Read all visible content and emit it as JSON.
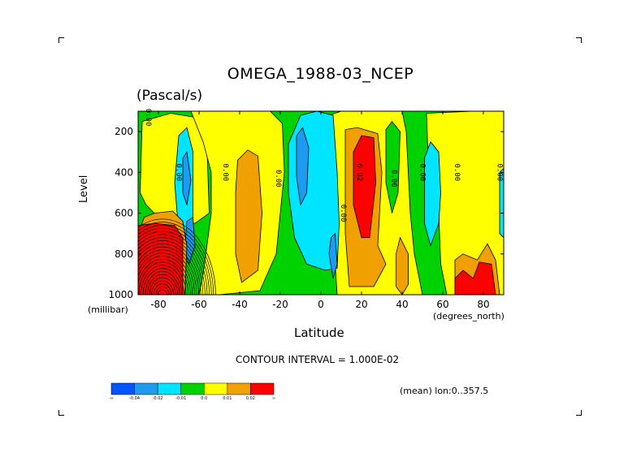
{
  "chart_data": {
    "type": "heatmap",
    "title": "OMEGA_1988-03_NCEP",
    "units": "(Pascal/s)",
    "ylabel": "Level",
    "y_units": "(millibar)",
    "xlabel": "Latitude",
    "x_units": "(degrees_north)",
    "xlim": [
      -90,
      90
    ],
    "ylim": [
      1000,
      100
    ],
    "x_ticks": [
      "-80",
      "-60",
      "-40",
      "-20",
      "0",
      "20",
      "40",
      "60",
      "80"
    ],
    "x_tick_values": [
      -80,
      -60,
      -40,
      -20,
      0,
      20,
      40,
      60,
      80
    ],
    "y_ticks": [
      "200",
      "400",
      "600",
      "800",
      "1000"
    ],
    "y_tick_values": [
      200,
      400,
      600,
      800,
      1000
    ],
    "contour_interval_text": "CONTOUR INTERVAL = 1.000E-02",
    "subtitle_right": "(mean) lon:0..357.5",
    "contour_labels": [
      {
        "text": "0.00",
        "lat": -71,
        "lev": 400
      },
      {
        "text": "0.00",
        "lat": -48,
        "lev": 400
      },
      {
        "text": "0.00",
        "lat": -22,
        "lev": 430
      },
      {
        "text": "0.00",
        "lat": 10,
        "lev": 600
      },
      {
        "text": "0.02",
        "lat": 18,
        "lev": 400
      },
      {
        "text": "0.00",
        "lat": 35,
        "lev": 430
      },
      {
        "text": "0.00",
        "lat": 49,
        "lev": 400
      },
      {
        "text": "0.00",
        "lat": 66,
        "lev": 400
      },
      {
        "text": "0.00",
        "lat": 87,
        "lev": 400
      },
      {
        "text": "0.00",
        "lat": -86,
        "lev": 130
      }
    ],
    "colorbar": {
      "colors": [
        "#0055ff",
        "#1e9bf0",
        "#00e5ff",
        "#00d200",
        "#ffff00",
        "#f0a000",
        "#ff0000"
      ],
      "labels": [
        "-∞",
        "-0.04",
        "-0.02",
        "-0.01",
        "0.0",
        "0.01",
        "0.02",
        "∞"
      ]
    },
    "regions": [
      {
        "level": "green",
        "color": "#00d200",
        "polygon": [
          [
            -90,
            100
          ],
          [
            90,
            100
          ],
          [
            90,
            1000
          ],
          [
            -90,
            1000
          ]
        ]
      },
      {
        "level": "yellow",
        "color": "#ffff00",
        "polygon": [
          [
            -88,
            150
          ],
          [
            -74,
            110
          ],
          [
            -62,
            130
          ],
          [
            -56,
            300
          ],
          [
            -55,
            600
          ],
          [
            -62,
            650
          ],
          [
            -70,
            640
          ],
          [
            -80,
            620
          ],
          [
            -86,
            560
          ],
          [
            -89,
            500
          ]
        ]
      },
      {
        "level": "yellow",
        "color": "#ffff00",
        "polygon": [
          [
            -64,
            100
          ],
          [
            -25,
            100
          ],
          [
            -19,
            160
          ],
          [
            -18,
            400
          ],
          [
            -22,
            800
          ],
          [
            -30,
            980
          ],
          [
            -50,
            1000
          ],
          [
            -60,
            1000
          ],
          [
            -58,
            900
          ],
          [
            -54,
            600
          ],
          [
            -54,
            400
          ],
          [
            -58,
            250
          ]
        ]
      },
      {
        "level": "yellow",
        "color": "#ffff00",
        "polygon": [
          [
            4,
            120
          ],
          [
            10,
            100
          ],
          [
            40,
            100
          ],
          [
            42,
            200
          ],
          [
            44,
            600
          ],
          [
            46,
            800
          ],
          [
            50,
            1000
          ],
          [
            8,
            1000
          ],
          [
            6,
            700
          ],
          [
            7,
            400
          ]
        ]
      },
      {
        "level": "yellow",
        "color": "#ffff00",
        "polygon": [
          [
            52,
            110
          ],
          [
            75,
            100
          ],
          [
            90,
            100
          ],
          [
            90,
            1000
          ],
          [
            62,
            1000
          ],
          [
            59,
            850
          ],
          [
            58,
            600
          ],
          [
            53,
            400
          ]
        ]
      },
      {
        "level": "green",
        "color": "#00d200",
        "polygon": [
          [
            32,
            190
          ],
          [
            35,
            150
          ],
          [
            39,
            200
          ],
          [
            38,
            500
          ],
          [
            35,
            600
          ],
          [
            32,
            450
          ]
        ]
      },
      {
        "level": "cyan",
        "color": "#00e5ff",
        "polygon": [
          [
            -70,
            220
          ],
          [
            -66,
            180
          ],
          [
            -63,
            300
          ],
          [
            -63,
            650
          ],
          [
            -66,
            760
          ],
          [
            -70,
            700
          ],
          [
            -72,
            450
          ]
        ]
      },
      {
        "level": "blue",
        "color": "#1e9bf0",
        "polygon": [
          [
            -68,
            330
          ],
          [
            -66,
            300
          ],
          [
            -64,
            440
          ],
          [
            -66,
            560
          ],
          [
            -68,
            500
          ]
        ]
      },
      {
        "level": "blue",
        "color": "#1e9bf0",
        "polygon": [
          [
            -66,
            640
          ],
          [
            -63,
            620
          ],
          [
            -62,
            760
          ],
          [
            -65,
            850
          ],
          [
            -67,
            780
          ]
        ]
      },
      {
        "level": "cyan",
        "color": "#00e5ff",
        "polygon": [
          [
            -16,
            260
          ],
          [
            -10,
            120
          ],
          [
            -2,
            100
          ],
          [
            6,
            120
          ],
          [
            8,
            400
          ],
          [
            9,
            650
          ],
          [
            8,
            870
          ],
          [
            2,
            880
          ],
          [
            -7,
            850
          ],
          [
            -13,
            720
          ],
          [
            -16,
            500
          ]
        ]
      },
      {
        "level": "blue",
        "color": "#1e9bf0",
        "polygon": [
          [
            -12,
            220
          ],
          [
            -9,
            180
          ],
          [
            -6,
            280
          ],
          [
            -7,
            500
          ],
          [
            -10,
            560
          ],
          [
            -12,
            420
          ]
        ]
      },
      {
        "level": "blue",
        "color": "#1e9bf0",
        "polygon": [
          [
            5,
            720
          ],
          [
            7,
            700
          ],
          [
            8,
            850
          ],
          [
            6,
            920
          ],
          [
            4,
            800
          ]
        ]
      },
      {
        "level": "cyan",
        "color": "#00e5ff",
        "polygon": [
          [
            51,
            330
          ],
          [
            54,
            250
          ],
          [
            58,
            300
          ],
          [
            59,
            500
          ],
          [
            58,
            650
          ],
          [
            54,
            760
          ],
          [
            51,
            650
          ]
        ]
      },
      {
        "level": "cyan",
        "color": "#00e5ff",
        "polygon": [
          [
            88,
            400
          ],
          [
            90,
            380
          ],
          [
            90,
            720
          ],
          [
            88,
            700
          ]
        ]
      },
      {
        "level": "orange",
        "color": "#f0a000",
        "polygon": [
          [
            -87,
            620
          ],
          [
            -82,
            600
          ],
          [
            -73,
            590
          ],
          [
            -68,
            640
          ],
          [
            -66,
            760
          ],
          [
            -67,
            1000
          ],
          [
            -89,
            1000
          ],
          [
            -90,
            700
          ]
        ]
      },
      {
        "level": "orange",
        "color": "#f0a000",
        "polygon": [
          [
            -41,
            340
          ],
          [
            -36,
            290
          ],
          [
            -31,
            320
          ],
          [
            -29,
            600
          ],
          [
            -31,
            880
          ],
          [
            -39,
            940
          ],
          [
            -42,
            800
          ],
          [
            -42,
            500
          ]
        ]
      },
      {
        "level": "orange",
        "color": "#f0a000",
        "polygon": [
          [
            12,
            190
          ],
          [
            18,
            180
          ],
          [
            28,
            210
          ],
          [
            30,
            400
          ],
          [
            28,
            760
          ],
          [
            32,
            850
          ],
          [
            26,
            960
          ],
          [
            14,
            960
          ],
          [
            12,
            700
          ],
          [
            12,
            400
          ]
        ]
      },
      {
        "level": "orange",
        "color": "#f0a000",
        "polygon": [
          [
            37,
            800
          ],
          [
            39,
            720
          ],
          [
            43,
            800
          ],
          [
            43,
            950
          ],
          [
            40,
            1000
          ],
          [
            37,
            960
          ]
        ]
      },
      {
        "level": "orange",
        "color": "#f0a000",
        "polygon": [
          [
            66,
            830
          ],
          [
            70,
            800
          ],
          [
            77,
            830
          ],
          [
            82,
            750
          ],
          [
            86,
            830
          ],
          [
            88,
            1000
          ],
          [
            66,
            1000
          ]
        ]
      },
      {
        "level": "red",
        "color": "#ff0000",
        "polygon": [
          [
            -90,
            660
          ],
          [
            -82,
            650
          ],
          [
            -72,
            660
          ],
          [
            -68,
            720
          ],
          [
            -68,
            1000
          ],
          [
            -90,
            1000
          ]
        ]
      },
      {
        "level": "red",
        "color": "#ff0000",
        "polygon": [
          [
            16,
            300
          ],
          [
            20,
            220
          ],
          [
            26,
            230
          ],
          [
            27,
            450
          ],
          [
            24,
            720
          ],
          [
            20,
            720
          ],
          [
            16,
            560
          ]
        ]
      },
      {
        "level": "red",
        "color": "#ff0000",
        "polygon": [
          [
            66,
            920
          ],
          [
            70,
            880
          ],
          [
            75,
            920
          ],
          [
            78,
            840
          ],
          [
            84,
            850
          ],
          [
            86,
            1000
          ],
          [
            66,
            1000
          ]
        ]
      }
    ]
  }
}
